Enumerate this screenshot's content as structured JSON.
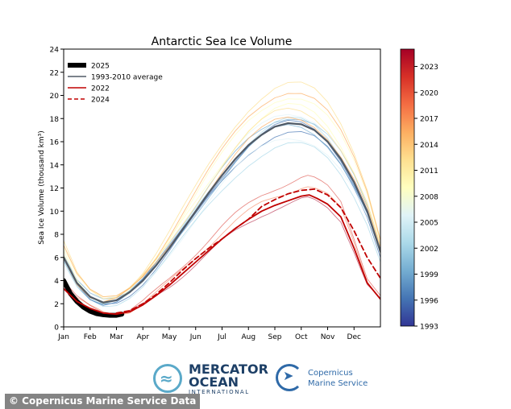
{
  "chart_data": {
    "type": "line",
    "title": "Antarctic Sea Ice Volume",
    "xlabel": "",
    "ylabel": "Sea Ice Volume (thousand km³)",
    "ylim": [
      0,
      24
    ],
    "xlim": [
      0,
      12
    ],
    "yticks": [
      "0",
      "2",
      "4",
      "6",
      "8",
      "10",
      "12",
      "14",
      "16",
      "18",
      "20",
      "22",
      "24"
    ],
    "xticks": [
      "Jan",
      "Feb",
      "Mar",
      "Apr",
      "May",
      "Jun",
      "Jul",
      "Aug",
      "Sep",
      "Oct",
      "Nov",
      "Dec"
    ],
    "legend_position": "top-left",
    "legend": [
      {
        "label": "2025",
        "style": "thick-black"
      },
      {
        "label": "1993-2010 average",
        "style": "gray"
      },
      {
        "label": "2022",
        "style": "red"
      },
      {
        "label": "2024",
        "style": "red-dashed"
      }
    ],
    "series": [
      {
        "name": "2025",
        "color": "#000000",
        "x": [
          0,
          0.25,
          0.5,
          0.75,
          1.0,
          1.25,
          1.5,
          1.75,
          2.0,
          2.2
        ],
        "y": [
          4.0,
          2.9,
          2.2,
          1.7,
          1.35,
          1.15,
          1.05,
          1.0,
          1.0,
          1.1
        ]
      },
      {
        "name": "1993-2010 average",
        "color": "#505a66",
        "x": [
          0,
          0.5,
          1,
          1.5,
          2,
          2.5,
          3,
          3.5,
          4,
          4.5,
          5,
          5.5,
          6,
          6.5,
          7,
          7.5,
          8,
          8.5,
          9,
          9.5,
          10,
          10.5,
          11,
          11.5,
          12
        ],
        "y": [
          6.0,
          3.8,
          2.6,
          2.1,
          2.3,
          3.0,
          4.0,
          5.3,
          6.8,
          8.4,
          10.0,
          11.6,
          13.1,
          14.5,
          15.7,
          16.6,
          17.3,
          17.6,
          17.5,
          17.0,
          16.0,
          14.5,
          12.5,
          10.0,
          6.5
        ]
      },
      {
        "name": "2022",
        "color": "#c00000",
        "x": [
          0,
          0.5,
          1,
          1.5,
          2,
          2.5,
          3,
          3.5,
          4,
          4.5,
          5,
          5.5,
          6,
          6.5,
          7,
          7.5,
          8,
          8.5,
          9,
          9.3,
          9.6,
          10,
          10.5,
          11,
          11.5,
          12
        ],
        "y": [
          3.3,
          2.2,
          1.6,
          1.2,
          1.1,
          1.3,
          1.9,
          2.7,
          3.6,
          4.6,
          5.6,
          6.6,
          7.6,
          8.5,
          9.3,
          10.0,
          10.5,
          10.9,
          11.3,
          11.4,
          11.1,
          10.6,
          9.5,
          6.8,
          3.8,
          2.4
        ]
      },
      {
        "name": "2024",
        "color": "#c00000",
        "dashed": true,
        "x": [
          2,
          2.5,
          3,
          3.5,
          4,
          4.5,
          5,
          5.5,
          6,
          6.5,
          7,
          7.5,
          8,
          8.5,
          9,
          9.5,
          10,
          10.5,
          11,
          11.5,
          12
        ],
        "y": [
          1.2,
          1.4,
          2.0,
          2.8,
          3.8,
          4.9,
          5.9,
          6.8,
          7.6,
          8.5,
          9.3,
          10.4,
          11.0,
          11.5,
          11.8,
          11.9,
          11.4,
          10.3,
          8.3,
          6.0,
          4.2
        ]
      }
    ],
    "colorbar": {
      "ticks": [
        "1993",
        "1996",
        "1999",
        "2002",
        "2005",
        "2008",
        "2011",
        "2014",
        "2017",
        "2020",
        "2023"
      ],
      "range": [
        1993,
        2025
      ],
      "colors": [
        "#313695",
        "#4575b4",
        "#74add1",
        "#abd9e9",
        "#e0f3f8",
        "#ffffbf",
        "#fee090",
        "#fdae61",
        "#f46d43",
        "#d73027",
        "#a50026"
      ]
    }
  },
  "footer": {
    "credit": "© Copernicus Marine Service Data",
    "logo_mercator_line1": "MERCATOR",
    "logo_mercator_line2": "OCEAN",
    "logo_mercator_line3": "INTERNATIONAL",
    "logo_copernicus_line1": "Copernicus",
    "logo_copernicus_line2": "Marine Service"
  }
}
